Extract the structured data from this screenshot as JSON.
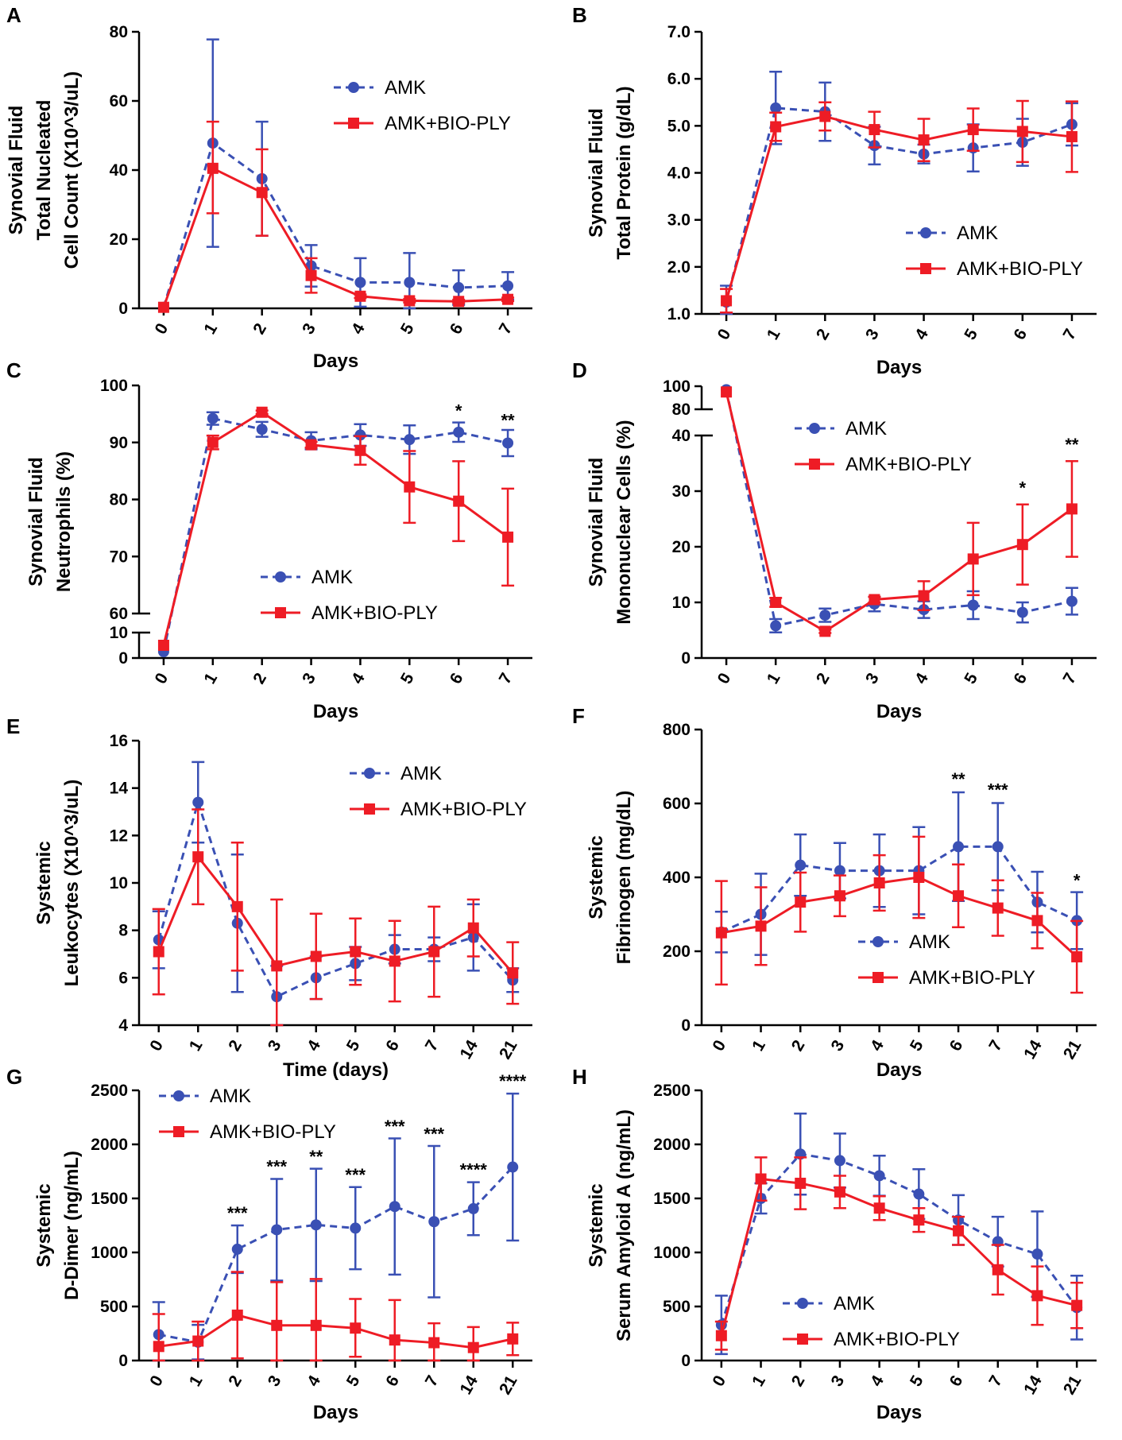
{
  "colors": {
    "amk": "#3a50b4",
    "bio": "#ee1c25"
  },
  "chart_data": [
    {
      "panel": "A",
      "type": "line",
      "ylabel_lines": [
        "Synovial Fluid",
        "Total  Nucleated",
        "Cell Count (X10^3/uL)"
      ],
      "xlabel": "Days",
      "categories": [
        "0",
        "1",
        "2",
        "3",
        "4",
        "5",
        "6",
        "7"
      ],
      "ylim": [
        0,
        80
      ],
      "yticks": [
        0,
        20,
        40,
        60,
        80
      ],
      "ytick_labels": [
        "0",
        "20",
        "40",
        "60",
        "80"
      ],
      "legend": "top-right",
      "series": [
        {
          "name": "AMK",
          "values": [
            0.3,
            47.8,
            37.5,
            12.3,
            7.5,
            7.5,
            6,
            6.5
          ],
          "err_up": [
            0,
            30,
            16.5,
            6,
            7,
            8.5,
            5,
            4
          ],
          "err_down": [
            0,
            30,
            16.5,
            6,
            7,
            7.5,
            5,
            4
          ]
        },
        {
          "name": "AMK+BIO-PLY",
          "values": [
            0.3,
            40.5,
            33.5,
            9.5,
            3.5,
            2.2,
            2,
            2.6
          ],
          "err_up": [
            0,
            13.5,
            12.5,
            5,
            0.5,
            0.5,
            0.5,
            0.5
          ],
          "err_down": [
            0,
            13,
            12.5,
            5,
            0.5,
            0.5,
            0.5,
            0.5
          ]
        }
      ],
      "annotations": []
    },
    {
      "panel": "B",
      "type": "line",
      "ylabel_lines": [
        "Synovial Fluid",
        "Total Protein (g/dL)"
      ],
      "xlabel": "Days",
      "categories": [
        "0",
        "1",
        "2",
        "3",
        "4",
        "5",
        "6",
        "7"
      ],
      "ylim": [
        1.0,
        7.0
      ],
      "yticks": [
        1,
        2,
        3,
        4,
        5,
        6,
        7
      ],
      "ytick_labels": [
        "1.0",
        "2.0",
        "3.0",
        "4.0",
        "5.0",
        "6.0",
        "7.0"
      ],
      "legend": "bottom-right",
      "series": [
        {
          "name": "AMK",
          "values": [
            1.25,
            5.38,
            5.3,
            4.58,
            4.4,
            4.53,
            4.65,
            5.03
          ],
          "err_up": [
            0.35,
            0.77,
            0.62,
            0.4,
            0.2,
            0.5,
            0.5,
            0.45
          ],
          "err_down": [
            0.35,
            0.77,
            0.62,
            0.4,
            0.2,
            0.5,
            0.5,
            0.45
          ]
        },
        {
          "name": "AMK+BIO-PLY",
          "values": [
            1.28,
            4.98,
            5.2,
            4.92,
            4.7,
            4.92,
            4.88,
            4.77
          ],
          "err_up": [
            0.25,
            0.3,
            0.3,
            0.38,
            0.45,
            0.45,
            0.65,
            0.75
          ],
          "err_down": [
            0.25,
            0.3,
            0.3,
            0.38,
            0.45,
            0.45,
            0.65,
            0.75
          ]
        }
      ],
      "annotations": []
    },
    {
      "panel": "C",
      "type": "line",
      "ylabel_lines": [
        "Synovial Fluid",
        "Neutrophils (%)"
      ],
      "xlabel": "Days",
      "categories": [
        "0",
        "1",
        "2",
        "3",
        "4",
        "5",
        "6",
        "7"
      ],
      "ylim": [
        0,
        100
      ],
      "broken_axis": {
        "lower": [
          0,
          10
        ],
        "upper": [
          60,
          100
        ]
      },
      "yticks": [
        0,
        10,
        60,
        70,
        80,
        90,
        100
      ],
      "ytick_labels": [
        "0",
        "10",
        "60",
        "70",
        "80",
        "90",
        "100"
      ],
      "legend": "bottom-center",
      "series": [
        {
          "name": "AMK",
          "values": [
            2.5,
            94.2,
            92.3,
            90.3,
            91.3,
            90.5,
            91.8,
            89.9
          ],
          "err_up": [
            0,
            1.1,
            1.3,
            1.5,
            1.9,
            2.5,
            1.7,
            2.3
          ],
          "err_down": [
            0,
            1.1,
            1.3,
            1.5,
            1.9,
            2.5,
            1.7,
            2.3
          ]
        },
        {
          "name": "AMK+BIO-PLY",
          "values": [
            5,
            90,
            95.3,
            89.6,
            88.6,
            82.2,
            79.7,
            73.4
          ],
          "err_up": [
            0,
            1.2,
            0.3,
            0.5,
            2.5,
            6.3,
            7,
            8.5
          ],
          "err_down": [
            0,
            1.2,
            0.3,
            0.5,
            2.5,
            6.3,
            7,
            8.5
          ]
        }
      ],
      "annotations": [
        {
          "x": "6",
          "text": "*",
          "y": 94.5
        },
        {
          "x": "7",
          "text": "**",
          "y": 92.8
        }
      ]
    },
    {
      "panel": "D",
      "type": "line",
      "ylabel_lines": [
        "Synovial Fluid",
        "Mononuclear Cells (%)"
      ],
      "xlabel": "Days",
      "categories": [
        "0",
        "1",
        "2",
        "3",
        "4",
        "5",
        "6",
        "7"
      ],
      "ylim": [
        0,
        100
      ],
      "broken_axis": {
        "lower": [
          0,
          40
        ],
        "upper": [
          80,
          100
        ]
      },
      "yticks": [
        0,
        10,
        20,
        30,
        40,
        80,
        100
      ],
      "ytick_labels": [
        "0",
        "10",
        "20",
        "30",
        "40",
        "80",
        "100"
      ],
      "legend": "top-center",
      "series": [
        {
          "name": "AMK",
          "values": [
            97,
            5.8,
            7.7,
            9.7,
            8.7,
            9.5,
            8.2,
            10.2
          ],
          "err_up": [
            0,
            1.2,
            1.2,
            1.3,
            1.5,
            2.5,
            1.8,
            2.4
          ],
          "err_down": [
            0,
            1.2,
            1.2,
            1.3,
            1.5,
            2.5,
            1.8,
            2.4
          ]
        },
        {
          "name": "AMK+BIO-PLY",
          "values": [
            95,
            10,
            4.8,
            10.5,
            11.2,
            17.8,
            20.4,
            26.8
          ],
          "err_up": [
            0,
            0.8,
            0.3,
            0.5,
            2.6,
            6.5,
            7.2,
            8.6
          ],
          "err_down": [
            0,
            0.8,
            0.3,
            0.5,
            2.6,
            6.5,
            7.2,
            8.6
          ]
        }
      ],
      "annotations": [
        {
          "x": "6",
          "text": "*",
          "y": 29.5
        },
        {
          "x": "7",
          "text": "**",
          "y": 37.3
        }
      ]
    },
    {
      "panel": "E",
      "type": "line",
      "ylabel_lines": [
        "Systemic",
        "Leukocytes (X10^3/uL)"
      ],
      "xlabel": "Time (days)",
      "categories": [
        "0",
        "1",
        "2",
        "3",
        "4",
        "5",
        "6",
        "7",
        "14",
        "21"
      ],
      "ylim": [
        4,
        16
      ],
      "yticks": [
        4,
        6,
        8,
        10,
        12,
        14,
        16
      ],
      "ytick_labels": [
        "4",
        "6",
        "8",
        "10",
        "12",
        "14",
        "16"
      ],
      "legend": "top-right",
      "series": [
        {
          "name": "AMK",
          "values": [
            7.6,
            13.4,
            8.3,
            5.2,
            6.0,
            6.6,
            7.2,
            7.2,
            7.7,
            5.9
          ],
          "err_up": [
            1.2,
            1.7,
            2.9,
            1.3,
            0.9,
            0.7,
            0.6,
            0.5,
            1.4,
            0.5
          ],
          "err_down": [
            1.2,
            1.7,
            2.9,
            1.3,
            0.9,
            0.7,
            0.6,
            0.5,
            1.4,
            0.5
          ]
        },
        {
          "name": "AMK+BIO-PLY",
          "values": [
            7.1,
            11.1,
            9.0,
            6.5,
            6.9,
            7.1,
            6.7,
            7.1,
            8.1,
            6.2
          ],
          "err_up": [
            1.8,
            2.0,
            2.7,
            2.8,
            1.8,
            1.4,
            1.7,
            1.9,
            1.2,
            1.3
          ],
          "err_down": [
            1.8,
            2.0,
            2.7,
            2.8,
            1.8,
            1.4,
            1.7,
            1.9,
            1.2,
            1.3
          ]
        }
      ],
      "annotations": []
    },
    {
      "panel": "F",
      "type": "line",
      "ylabel_lines": [
        "Systemic",
        "Fibrinogen (mg/dL)"
      ],
      "xlabel": "Days",
      "categories": [
        "0",
        "1",
        "2",
        "3",
        "4",
        "5",
        "6",
        "7",
        "14",
        "21"
      ],
      "ylim": [
        0,
        800
      ],
      "yticks": [
        0,
        200,
        400,
        600,
        800
      ],
      "ytick_labels": [
        "0",
        "200",
        "400",
        "600",
        "800"
      ],
      "legend": "bottom-right",
      "series": [
        {
          "name": "AMK",
          "values": [
            252,
            300,
            433,
            418,
            418,
            418,
            483,
            483,
            333,
            283
          ],
          "err_up": [
            55,
            110,
            83,
            75,
            98,
            118,
            147,
            118,
            82,
            77
          ],
          "err_down": [
            55,
            110,
            83,
            75,
            98,
            118,
            147,
            118,
            82,
            77
          ]
        },
        {
          "name": "AMK+BIO-PLY",
          "values": [
            250,
            268,
            333,
            350,
            385,
            400,
            350,
            317,
            283,
            185
          ],
          "err_up": [
            140,
            105,
            80,
            55,
            75,
            110,
            85,
            75,
            75,
            97
          ],
          "err_down": [
            140,
            105,
            80,
            55,
            75,
            110,
            85,
            75,
            75,
            97
          ]
        }
      ],
      "annotations": [
        {
          "x": "6",
          "text": "**",
          "y": 650
        },
        {
          "x": "7",
          "text": "***",
          "y": 620
        },
        {
          "x": "21",
          "text": "*",
          "y": 375
        }
      ]
    },
    {
      "panel": "G",
      "type": "line",
      "ylabel_lines": [
        "Systemic",
        "D-Dimer (ng/mL)"
      ],
      "xlabel": "Days",
      "categories": [
        "0",
        "1",
        "2",
        "3",
        "4",
        "5",
        "6",
        "7",
        "14",
        "21"
      ],
      "ylim": [
        0,
        2500
      ],
      "yticks": [
        0,
        500,
        1000,
        1500,
        2000,
        2500
      ],
      "ytick_labels": [
        "0",
        "500",
        "1000",
        "1500",
        "2000",
        "2500"
      ],
      "legend": "top-left",
      "series": [
        {
          "name": "AMK",
          "values": [
            240,
            170,
            1030,
            1210,
            1255,
            1225,
            1425,
            1285,
            1405,
            1790
          ],
          "err_up": [
            300,
            160,
            220,
            470,
            520,
            380,
            630,
            700,
            245,
            680
          ],
          "err_down": [
            300,
            160,
            220,
            470,
            520,
            380,
            630,
            700,
            245,
            680
          ]
        },
        {
          "name": "AMK+BIO-PLY",
          "values": [
            130,
            180,
            420,
            325,
            325,
            300,
            190,
            165,
            120,
            200
          ],
          "err_up": [
            300,
            180,
            400,
            400,
            430,
            270,
            370,
            180,
            190,
            150
          ],
          "err_down": [
            130,
            180,
            400,
            325,
            325,
            265,
            190,
            165,
            120,
            150
          ]
        }
      ],
      "annotations": [
        {
          "x": "2",
          "text": "***",
          "y": 1310
        },
        {
          "x": "3",
          "text": "***",
          "y": 1740
        },
        {
          "x": "4",
          "text": "**",
          "y": 1830
        },
        {
          "x": "5",
          "text": "***",
          "y": 1660
        },
        {
          "x": "6",
          "text": "***",
          "y": 2110
        },
        {
          "x": "7",
          "text": "***",
          "y": 2040
        },
        {
          "x": "14",
          "text": "****",
          "y": 1710
        },
        {
          "x": "21",
          "text": "****",
          "y": 2530
        }
      ]
    },
    {
      "panel": "H",
      "type": "line",
      "ylabel_lines": [
        "Systemic",
        "Serum Amyloid A (ng/mL)"
      ],
      "xlabel": "Days",
      "categories": [
        "0",
        "1",
        "2",
        "3",
        "4",
        "5",
        "6",
        "7",
        "14",
        "21"
      ],
      "ylim": [
        0,
        2500
      ],
      "yticks": [
        0,
        500,
        1000,
        1500,
        2000,
        2500
      ],
      "ytick_labels": [
        "0",
        "500",
        "1000",
        "1500",
        "2000",
        "2500"
      ],
      "legend": "bottom-center",
      "series": [
        {
          "name": "AMK",
          "values": [
            330,
            1500,
            1910,
            1850,
            1710,
            1540,
            1300,
            1100,
            985,
            490
          ],
          "err_up": [
            270,
            140,
            375,
            250,
            185,
            230,
            230,
            230,
            395,
            295
          ],
          "err_down": [
            270,
            140,
            375,
            250,
            185,
            230,
            230,
            230,
            395,
            295
          ]
        },
        {
          "name": "AMK+BIO-PLY",
          "values": [
            230,
            1680,
            1640,
            1560,
            1410,
            1300,
            1200,
            840,
            600,
            510
          ],
          "err_up": [
            130,
            200,
            240,
            150,
            110,
            110,
            130,
            230,
            270,
            210
          ],
          "err_down": [
            130,
            200,
            240,
            150,
            110,
            110,
            130,
            230,
            270,
            210
          ]
        }
      ],
      "annotations": []
    }
  ]
}
